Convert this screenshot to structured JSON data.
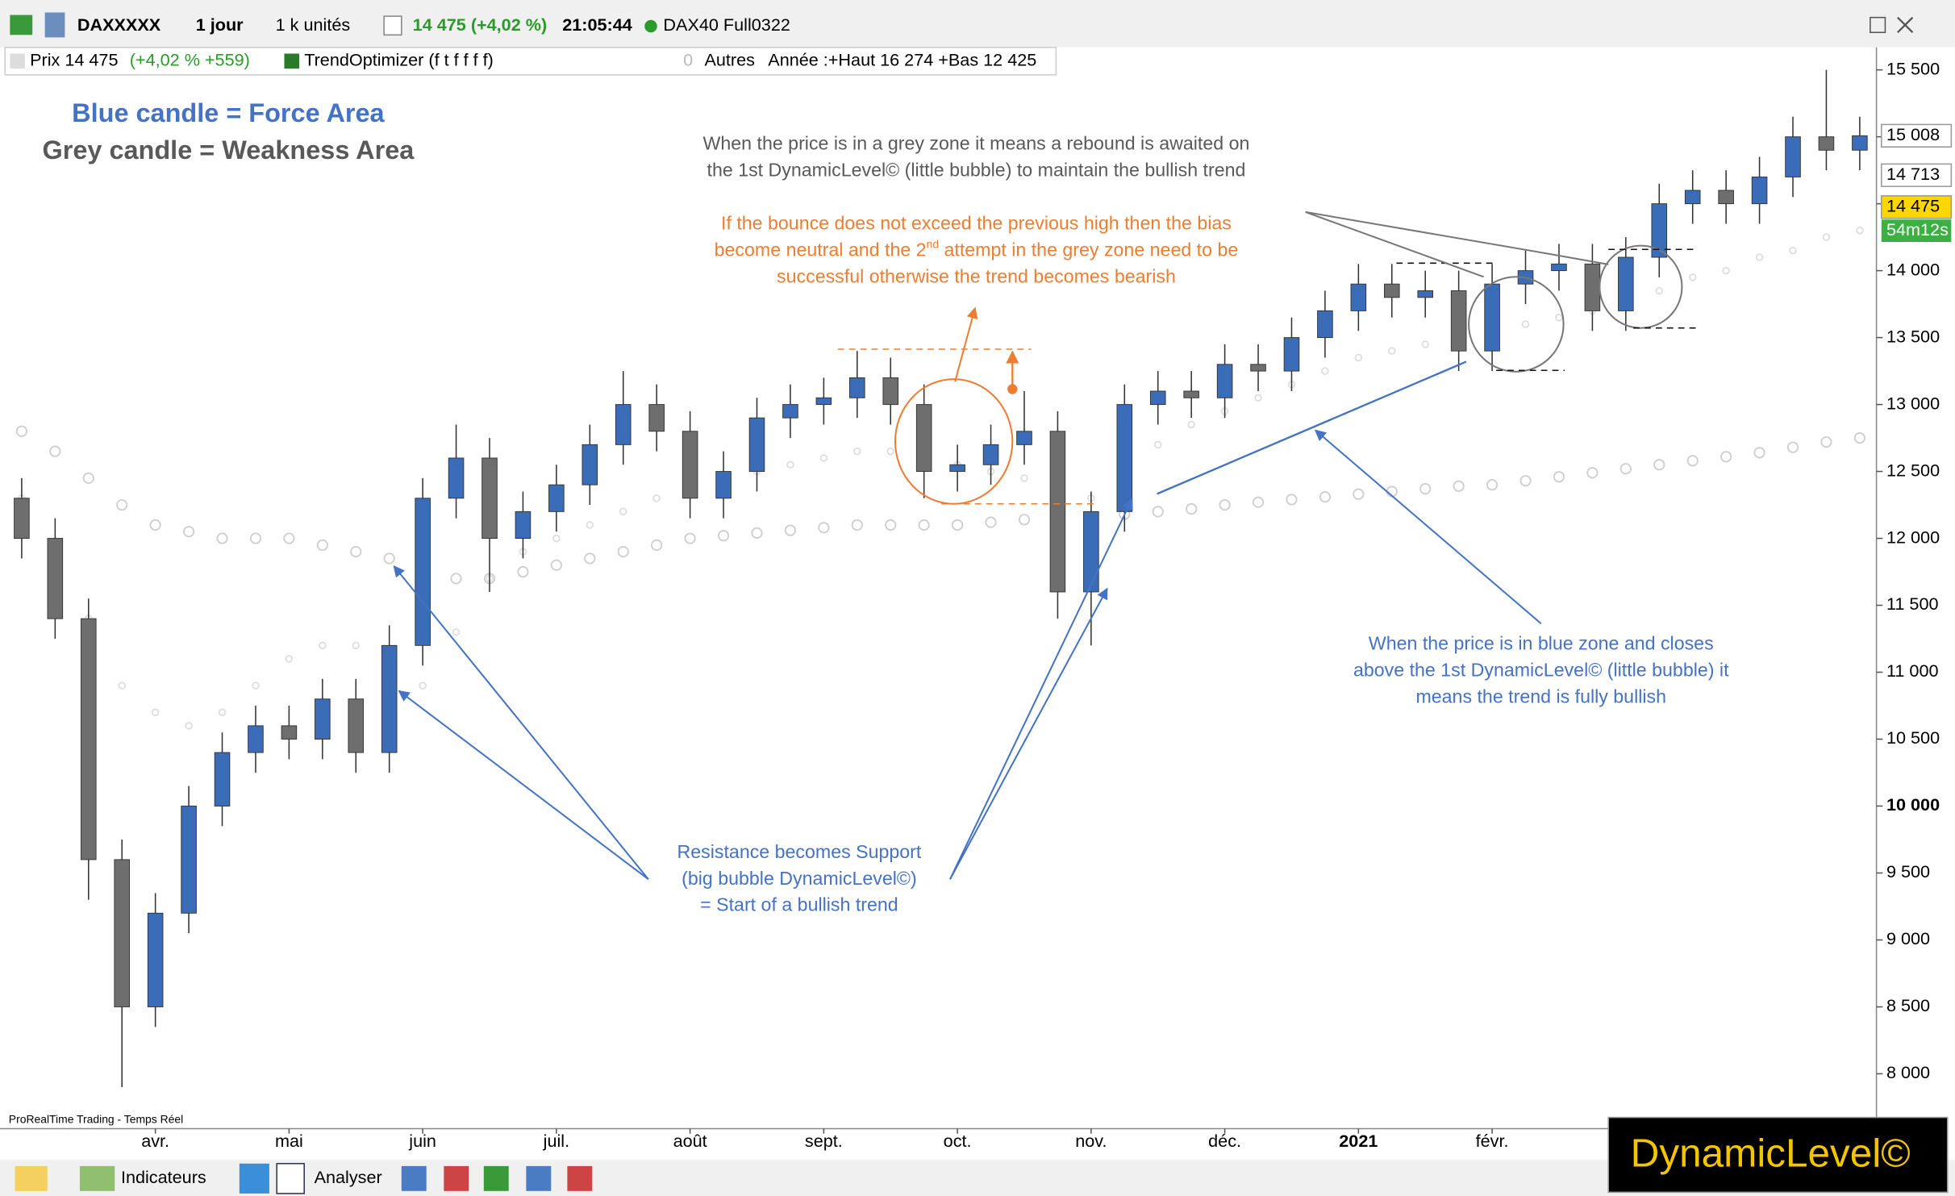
{
  "toolbar": {
    "symbol": "DAXXXXX",
    "period": "1 jour",
    "units": "1 k unités",
    "quote": "14 475 (+4,02 %)",
    "time": "21:05:44",
    "feed": "DAX40 Full0322"
  },
  "info_bar": {
    "price_label": "Prix 14 475",
    "price_change": "(+4,02 % +559)",
    "indicator": "TrendOptimizer (f t f f f f)",
    "indicator_value": 0,
    "others": "Autres",
    "year_range": "Année :+Haut 16 274 +Bas 12 425"
  },
  "chart_data": {
    "type": "candlestick",
    "source": "ProRealTime Trading - Temps Réel",
    "categories": [
      null,
      null,
      null,
      null,
      "avr.",
      null,
      null,
      null,
      "mai",
      null,
      null,
      null,
      "juin",
      null,
      null,
      null,
      "juil.",
      null,
      null,
      null,
      "août",
      null,
      null,
      null,
      "sept.",
      null,
      null,
      null,
      "oct.",
      null,
      null,
      null,
      "nov.",
      null,
      null,
      null,
      "déc.",
      null,
      null,
      null,
      "2021",
      null,
      null,
      null,
      "févr.",
      null,
      null,
      null,
      null,
      null,
      null,
      null,
      null,
      null,
      null,
      null
    ],
    "open": [
      12300,
      12000,
      11400,
      9600,
      8500,
      9200,
      10000,
      10400,
      10600,
      10500,
      10800,
      10400,
      11200,
      12300,
      12600,
      12000,
      12200,
      12400,
      12700,
      13000,
      12800,
      12300,
      12500,
      12900,
      13000,
      13050,
      13200,
      13000,
      12500,
      12550,
      12700,
      12800,
      11600,
      12200,
      13000,
      13100,
      13050,
      13300,
      13250,
      13500,
      13700,
      13900,
      13800,
      13850,
      13400,
      13900,
      14000,
      14050,
      13700,
      14100,
      14500,
      14600,
      14500,
      14700,
      15000,
      14900
    ],
    "high": [
      12450,
      12150,
      11550,
      9750,
      9350,
      10150,
      10550,
      10750,
      10750,
      10950,
      10950,
      11350,
      12450,
      12850,
      12750,
      12350,
      12550,
      12850,
      13250,
      13150,
      12950,
      12650,
      13050,
      13150,
      13200,
      13400,
      13350,
      13150,
      12700,
      12850,
      13100,
      12950,
      12350,
      13150,
      13250,
      13250,
      13450,
      13450,
      13650,
      13850,
      14050,
      14050,
      14000,
      14000,
      14050,
      14150,
      14200,
      14200,
      14250,
      14650,
      14750,
      14750,
      14850,
      15150,
      15500,
      15150
    ],
    "low": [
      11850,
      11250,
      9300,
      7900,
      8350,
      9050,
      9850,
      10250,
      10350,
      10350,
      10250,
      10250,
      11050,
      12150,
      11600,
      11850,
      12050,
      12250,
      12550,
      12650,
      12150,
      12150,
      12350,
      12750,
      12850,
      12900,
      12850,
      12300,
      12350,
      12400,
      12550,
      11400,
      11200,
      12050,
      12850,
      12900,
      12900,
      13100,
      13100,
      13350,
      13550,
      13650,
      13650,
      13250,
      13250,
      13750,
      13850,
      13550,
      13550,
      13950,
      14350,
      14350,
      14350,
      14550,
      14750,
      14750
    ],
    "close": [
      12000,
      11400,
      9600,
      8500,
      9200,
      10000,
      10400,
      10600,
      10500,
      10800,
      10400,
      11200,
      12300,
      12600,
      12000,
      12200,
      12400,
      12700,
      13000,
      12800,
      12300,
      12500,
      12900,
      13000,
      13050,
      13200,
      13000,
      12500,
      12550,
      12700,
      12800,
      11600,
      12200,
      13000,
      13100,
      13050,
      13300,
      13250,
      13500,
      13700,
      13900,
      13800,
      13850,
      13400,
      13900,
      14000,
      14050,
      13700,
      14100,
      14500,
      14600,
      14500,
      14700,
      15000,
      14900,
      15008
    ],
    "up_color": "#3b6cb7",
    "down_color": "#6e6e6e",
    "levels": [
      {
        "color": "#cfcfcf",
        "values": [
          12800,
          12650,
          12450,
          12250,
          12100,
          12050,
          12000,
          12000,
          12000,
          11950,
          11900,
          11850,
          11750,
          11700,
          11700,
          11750,
          11800,
          11850,
          11900,
          11950,
          12000,
          12020,
          12040,
          12060,
          12080,
          12100,
          12100,
          12100,
          12100,
          12120,
          12140,
          12150,
          12150,
          12180,
          12200,
          12220,
          12250,
          12270,
          12290,
          12310,
          12330,
          12350,
          12370,
          12390,
          12400,
          12430,
          12460,
          12490,
          12520,
          12550,
          12580,
          12610,
          12640,
          12680,
          12720,
          12750
        ]
      },
      {
        "color": "#dedede",
        "values": [
          12300,
          11900,
          11400,
          10900,
          10700,
          10600,
          10700,
          10900,
          11100,
          11200,
          11200,
          11100,
          10900,
          11300,
          11700,
          11900,
          12000,
          12100,
          12200,
          12300,
          12400,
          12450,
          12500,
          12550,
          12600,
          12650,
          12650,
          12600,
          12550,
          12500,
          12450,
          12400,
          12300,
          12500,
          12700,
          12850,
          12950,
          13050,
          13150,
          13250,
          13350,
          13400,
          13450,
          13500,
          13550,
          13600,
          13650,
          13700,
          13750,
          13850,
          13950,
          14000,
          14100,
          14150,
          14250,
          14300
        ]
      }
    ],
    "ylim": [
      7590,
      15668
    ],
    "yticks": [
      {
        "value": 8000,
        "label": "8 000"
      },
      {
        "value": 8500,
        "label": "8 500"
      },
      {
        "value": 9000,
        "label": "9 000"
      },
      {
        "value": 9500,
        "label": "9 500"
      },
      {
        "value": 10000,
        "label": "10 000"
      },
      {
        "value": 10500,
        "label": "10 500"
      },
      {
        "value": 11000,
        "label": "11 000"
      },
      {
        "value": 11500,
        "label": "11 500"
      },
      {
        "value": 12000,
        "label": "12 000"
      },
      {
        "value": 12500,
        "label": "12 500"
      },
      {
        "value": 13000,
        "label": "13 000"
      },
      {
        "value": 13500,
        "label": "13 500"
      },
      {
        "value": 14000,
        "label": "14 000"
      },
      {
        "value": 14500,
        "label": "14 500"
      },
      {
        "value": 15000,
        "label": "15 000"
      },
      {
        "value": 15500,
        "label": "15 500"
      }
    ],
    "price_badges": [
      {
        "value": 15008,
        "label": "15 008",
        "color": "#ffffff"
      },
      {
        "value": 14713,
        "label": "14 713",
        "color": "#ffffff"
      },
      {
        "value": 14475,
        "label": "14 475",
        "color": "#ffd700"
      }
    ],
    "timer": "54m12s",
    "legend_texts": [
      {
        "text": "Blue candle = Force Area",
        "color": "#4472c4"
      },
      {
        "text": "Grey candle = Weakness Area",
        "color": "#595959"
      }
    ],
    "annotations": [
      {
        "color": "#595959",
        "lines": [
          "When the price is in a grey zone it means a rebound is awaited on",
          "the 1st DynamicLevel© (little bubble) to maintain the bullish trend"
        ]
      },
      {
        "color": "#ed7d31",
        "lines": [
          "If the bounce does not exceed the previous high then the bias",
          [
            "become neutral and the 2",
            "nd",
            " attempt in the grey zone need to be"
          ],
          "successful otherwise the trend becomes bearish"
        ]
      },
      {
        "color": "#4472c4",
        "lines": [
          "When the price is in blue zone and closes",
          "above the 1st DynamicLevel© (little bubble) it",
          "means the trend is fully bullish"
        ]
      },
      {
        "color": "#4472c4",
        "lines": [
          "Resistance becomes Support",
          "(big bubble DynamicLevel©)",
          "= Start of a bullish trend"
        ]
      }
    ]
  },
  "footer": {
    "indicators": "Indicateurs",
    "analyze": "Analyser",
    "brand": "DynamicLevel©"
  }
}
